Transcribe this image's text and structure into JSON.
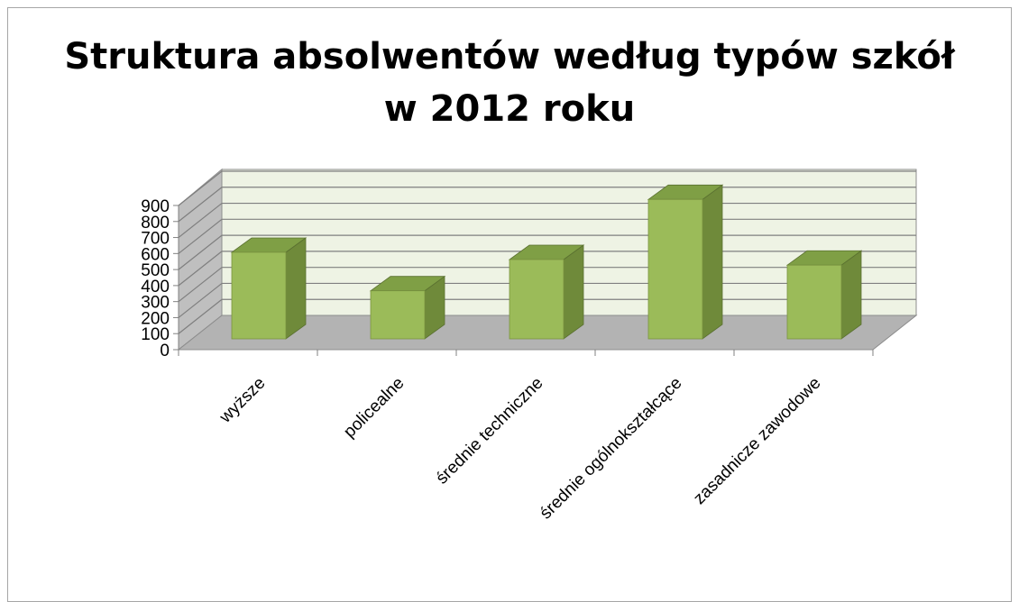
{
  "chart_data": {
    "type": "bar",
    "title_line1": "Struktura absolwentów według typów szkół",
    "title_line2": "w 2012 roku",
    "categories": [
      "wyższe",
      "policealne",
      "średnie techniczne",
      "średnie ogólnokształcące",
      "zasadnicze zawodowe"
    ],
    "values": [
      540,
      300,
      495,
      870,
      460
    ],
    "ylim": [
      0,
      900
    ],
    "yticks": [
      "0",
      "100",
      "200",
      "300",
      "400",
      "500",
      "600",
      "700",
      "800",
      "900"
    ],
    "xlabel": "",
    "ylabel": "",
    "grid": true,
    "legend": "none",
    "colors": {
      "bar_front": "#9bbb59",
      "bar_side": "#6f8a3a",
      "bar_top": "#7f9f45",
      "back_wall": "#eef3e4",
      "side_wall": "#bfbfbf",
      "floor": "#b3b3b3",
      "gridline": "#7f7f7f"
    }
  }
}
